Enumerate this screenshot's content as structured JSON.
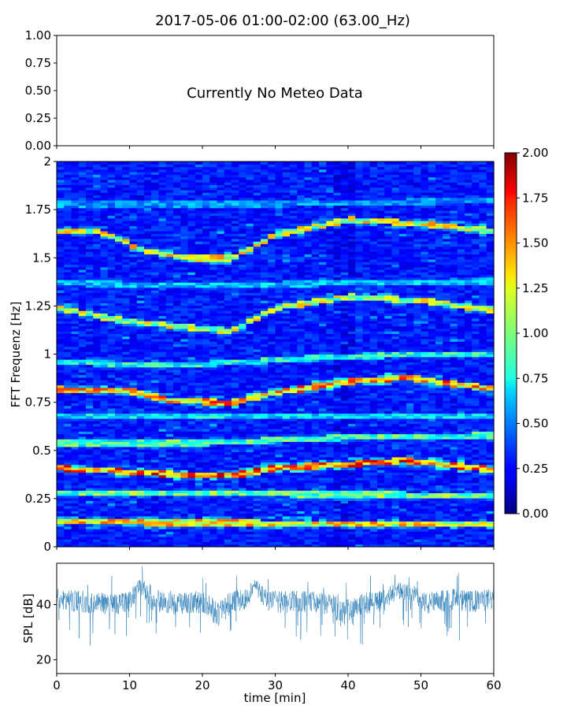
{
  "title": "2017-05-06 01:00-02:00 (63.00_Hz)",
  "chart_data": [
    {
      "id": "meteo",
      "type": "line",
      "title": "",
      "xlabel": "",
      "ylabel": "",
      "ylim": [
        0,
        1
      ],
      "yticks": [
        0,
        0.25,
        0.5,
        0.75,
        1.0
      ],
      "ytick_labels": [
        "0.00",
        "0.25",
        "0.50",
        "0.75",
        "1.00"
      ],
      "message": "Currently No Meteo Data",
      "series": []
    },
    {
      "id": "spectrogram",
      "type": "heatmap",
      "xlabel": "",
      "ylabel": "FFT Frequenz [Hz]",
      "xlim": [
        0,
        60
      ],
      "ylim": [
        0,
        2
      ],
      "yticks": [
        0,
        0.25,
        0.5,
        0.75,
        1,
        1.25,
        1.5,
        1.75,
        2
      ],
      "ytick_labels": [
        "0",
        "0.25",
        "0.5",
        "0.75",
        "1",
        "1.25",
        "1.5",
        "1.75",
        "2"
      ],
      "colormap": "jet",
      "clim": [
        0,
        2
      ],
      "colorbar_ticks": [
        0,
        0.25,
        0.5,
        0.75,
        1.0,
        1.25,
        1.5,
        1.75,
        2.0
      ],
      "colorbar_tick_labels": [
        "0.00",
        "0.25",
        "0.50",
        "0.75",
        "1.00",
        "1.25",
        "1.50",
        "1.75",
        "2.00"
      ],
      "ridges": [
        {
          "t": [
            0,
            60
          ],
          "f": [
            0.13,
            0.12
          ],
          "intensity": 1.6
        },
        {
          "t": [
            0,
            60
          ],
          "f": [
            0.28,
            0.27
          ],
          "intensity": 1.2
        },
        {
          "t": [
            0,
            10,
            20,
            24,
            30,
            40,
            48,
            60
          ],
          "f": [
            0.41,
            0.39,
            0.37,
            0.37,
            0.41,
            0.43,
            0.45,
            0.4
          ],
          "intensity": 1.9
        },
        {
          "t": [
            0,
            20,
            40,
            60
          ],
          "f": [
            0.54,
            0.54,
            0.57,
            0.58
          ],
          "intensity": 1.1
        },
        {
          "t": [
            0,
            60
          ],
          "f": [
            0.68,
            0.68
          ],
          "intensity": 0.9
        },
        {
          "t": [
            0,
            10,
            16,
            24,
            30,
            40,
            48,
            60
          ],
          "f": [
            0.82,
            0.81,
            0.76,
            0.75,
            0.8,
            0.86,
            0.88,
            0.82
          ],
          "intensity": 1.8
        },
        {
          "t": [
            0,
            10,
            20,
            30,
            40,
            50,
            60
          ],
          "f": [
            0.96,
            0.95,
            0.95,
            0.97,
            0.99,
            1.0,
            1.0
          ],
          "intensity": 1.0
        },
        {
          "t": [
            0,
            10,
            16,
            24,
            30,
            40,
            50,
            60
          ],
          "f": [
            1.24,
            1.17,
            1.15,
            1.12,
            1.24,
            1.3,
            1.28,
            1.23
          ],
          "intensity": 1.4
        },
        {
          "t": [
            0,
            6,
            12,
            18,
            24,
            30,
            40,
            50,
            60
          ],
          "f": [
            1.64,
            1.64,
            1.54,
            1.5,
            1.5,
            1.62,
            1.7,
            1.68,
            1.64
          ],
          "intensity": 1.5
        },
        {
          "t": [
            0,
            20,
            40,
            60
          ],
          "f": [
            1.37,
            1.36,
            1.37,
            1.38
          ],
          "intensity": 0.8
        },
        {
          "t": [
            0,
            30,
            60
          ],
          "f": [
            1.78,
            1.78,
            1.8
          ],
          "intensity": 0.7
        }
      ]
    },
    {
      "id": "spl",
      "type": "line",
      "xlabel": "time [min]",
      "ylabel": "SPL [dB]",
      "xlim": [
        0,
        60
      ],
      "ylim": [
        15,
        55
      ],
      "xticks": [
        0,
        10,
        20,
        30,
        40,
        50,
        60
      ],
      "xtick_labels": [
        "0",
        "10",
        "20",
        "30",
        "40",
        "50",
        "60"
      ],
      "yticks": [
        20,
        40
      ],
      "ytick_labels": [
        "20",
        "40"
      ],
      "color": "#1f77b4",
      "envelope": {
        "t": [
          0,
          4,
          8,
          10,
          11.5,
          13,
          16,
          19,
          21,
          22,
          24,
          26,
          27.2,
          29,
          32,
          36,
          38,
          39,
          41,
          44,
          47,
          49,
          51,
          54,
          57,
          60
        ],
        "center": [
          42,
          41,
          40,
          41,
          47,
          42,
          40,
          41,
          40,
          36,
          41,
          42,
          47,
          41,
          41,
          41,
          40,
          36,
          40,
          41,
          45,
          44,
          40,
          42,
          41,
          42
        ],
        "spread": [
          4,
          4,
          4,
          4,
          3,
          4,
          4,
          4,
          4,
          5,
          4,
          4,
          3,
          4,
          4,
          4,
          4,
          5,
          4,
          4,
          3,
          3,
          4,
          4,
          4,
          4
        ]
      }
    }
  ]
}
